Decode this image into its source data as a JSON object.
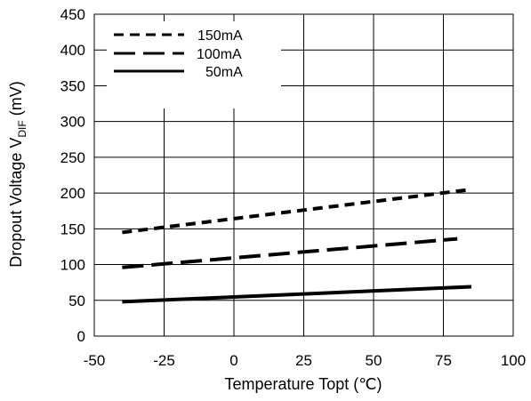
{
  "chart_data": {
    "type": "line",
    "xlabel": "Temperature Topt (℃)",
    "ylabel": "Dropout Voltage V",
    "ylabel_subscript": "DIF",
    "ylabel_unit": " (mV)",
    "xlim": [
      -50,
      100
    ],
    "ylim": [
      0,
      450
    ],
    "x_ticks": [
      -50,
      -25,
      0,
      25,
      50,
      75,
      100
    ],
    "y_ticks": [
      0,
      50,
      100,
      150,
      200,
      250,
      300,
      350,
      400,
      450
    ],
    "grid": true,
    "legend_position": "top-left",
    "series": [
      {
        "name": "150mA",
        "style": "short-dash",
        "x": [
          -40,
          85
        ],
        "values": [
          145,
          205
        ]
      },
      {
        "name": "100mA",
        "style": "long-dash",
        "x": [
          -40,
          80
        ],
        "values": [
          96,
          136
        ]
      },
      {
        "name": "50mA",
        "style": "solid",
        "x": [
          -40,
          85
        ],
        "values": [
          48,
          69
        ]
      }
    ],
    "line_color": "#000000",
    "grid_color": "#000000"
  }
}
